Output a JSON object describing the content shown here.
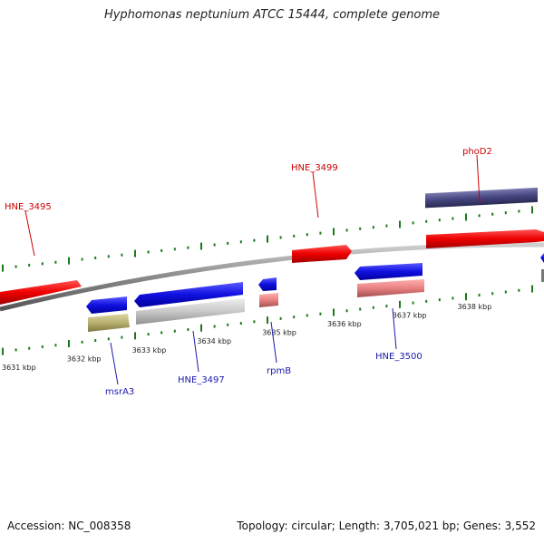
{
  "title": "Hyphomonas neptunium ATCC 15444, complete genome",
  "footer": {
    "accession": "Accession: NC_008358",
    "summary": "Topology: circular; Length: 3,705,021 bp; Genes: 3,552"
  },
  "scale": {
    "ticks": [
      {
        "label": "3631 kbp",
        "kbp": 3631
      },
      {
        "label": "3632 kbp",
        "kbp": 3632
      },
      {
        "label": "3633 kbp",
        "kbp": 3633
      },
      {
        "label": "3634 kbp",
        "kbp": 3634
      },
      {
        "label": "3635 kbp",
        "kbp": 3635
      },
      {
        "label": "3636 kbp",
        "kbp": 3636
      },
      {
        "label": "3637 kbp",
        "kbp": 3637
      },
      {
        "label": "3638 kbp",
        "kbp": 3638
      }
    ]
  },
  "genes": [
    {
      "name": "HNE_3495",
      "strand": "forward",
      "color": "#cc0000"
    },
    {
      "name": "HNE_3499",
      "strand": "forward",
      "color": "#cc0000"
    },
    {
      "name": "phoD2",
      "strand": "forward",
      "color": "#cc0000"
    },
    {
      "name": "msrA3",
      "strand": "reverse",
      "color": "#1a1aaa"
    },
    {
      "name": "HNE_3497",
      "strand": "reverse",
      "color": "#1a1aaa"
    },
    {
      "name": "rpmB",
      "strand": "reverse",
      "color": "#1a1aaa"
    },
    {
      "name": "HNE_3500",
      "strand": "reverse",
      "color": "#1a1aaa"
    }
  ],
  "colors": {
    "forward_gene": "#ee1111",
    "reverse_gene": "#1111dd",
    "backbone": "#888888",
    "tick": "#1a7a1a",
    "phoD2_feature": "#45457f",
    "rpmB_feature": "#e88080",
    "HNE_3500_feature": "#e88080",
    "msrA3_feature": "#b8b070",
    "HNE_3497_feature": "#c8c8c8"
  }
}
